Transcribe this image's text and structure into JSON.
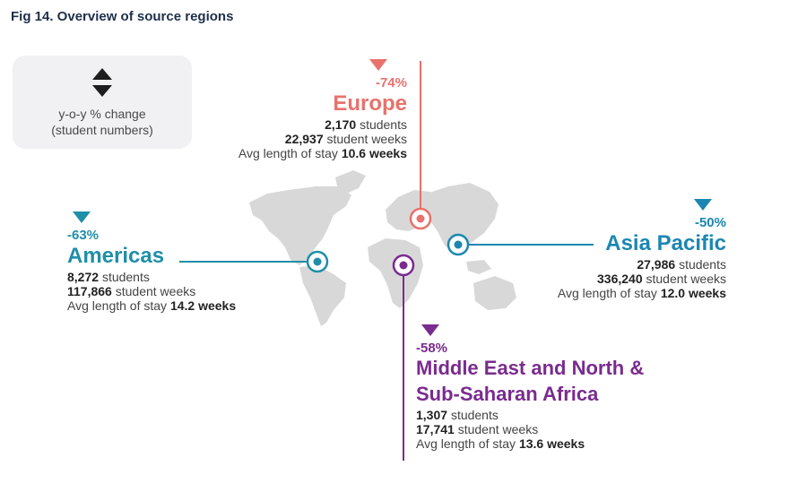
{
  "title": "Fig 14. Overview of source regions",
  "legend": {
    "icon": "up-down-arrows-icon",
    "line1": "y-o-y % change",
    "line2": "(student numbers)"
  },
  "colors": {
    "europe": "#e8726c",
    "americas": "#1f8fa8",
    "asia_pacific": "#1b87b0",
    "mena_ssa": "#7a2b8e",
    "map": "#d6d6d6"
  },
  "regions": {
    "europe": {
      "change": "-74%",
      "name": "Europe",
      "students": "2,170",
      "students_label": "students",
      "weeks": "22,937",
      "weeks_label": "student weeks",
      "stay_label": "Avg length of stay",
      "stay": "10.6 weeks"
    },
    "americas": {
      "change": "-63%",
      "name": "Americas",
      "students": "8,272",
      "students_label": "students",
      "weeks": "117,866",
      "weeks_label": "student weeks",
      "stay_label": "Avg length of stay",
      "stay": "14.2 weeks"
    },
    "asia_pacific": {
      "change": "-50%",
      "name": "Asia Pacific",
      "students": "27,986",
      "students_label": "students",
      "weeks": "336,240",
      "weeks_label": "student weeks",
      "stay_label": "Avg length of stay",
      "stay": "12.0 weeks"
    },
    "mena_ssa": {
      "change": "-58%",
      "name_line1": "Middle East and North &",
      "name_line2": "Sub-Saharan Africa",
      "students": "1,307",
      "students_label": "students",
      "weeks": "17,741",
      "weeks_label": "student weeks",
      "stay_label": "Avg length of stay",
      "stay": "13.6 weeks"
    }
  }
}
